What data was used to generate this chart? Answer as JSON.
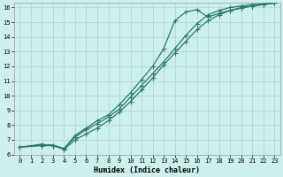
{
  "xlabel": "Humidex (Indice chaleur)",
  "xlim": [
    -0.5,
    23.5
  ],
  "ylim": [
    6,
    16.3
  ],
  "xticks": [
    0,
    1,
    2,
    3,
    4,
    5,
    6,
    7,
    8,
    9,
    10,
    11,
    12,
    13,
    14,
    15,
    16,
    17,
    18,
    19,
    20,
    21,
    22,
    23
  ],
  "yticks": [
    6,
    7,
    8,
    9,
    10,
    11,
    12,
    13,
    14,
    15,
    16
  ],
  "bg_color": "#cdf0ec",
  "grid_color": "#b0d8d4",
  "line_color": "#2a7a6a",
  "line1_x": [
    0,
    2,
    3,
    4,
    5,
    6,
    7,
    8,
    9,
    10,
    11,
    12,
    13,
    14,
    15,
    16,
    17,
    18,
    19,
    20,
    21,
    22,
    23
  ],
  "line1_y": [
    6.5,
    6.7,
    6.6,
    6.4,
    7.3,
    7.8,
    8.3,
    8.7,
    9.4,
    10.2,
    11.1,
    12.0,
    13.2,
    15.1,
    15.7,
    15.85,
    15.35,
    15.6,
    15.8,
    15.95,
    16.1,
    16.2,
    16.3
  ],
  "line2_x": [
    0,
    2,
    3,
    4,
    5,
    6,
    7,
    8,
    9,
    10,
    11,
    12,
    13,
    14,
    15,
    16,
    17,
    18,
    19,
    20,
    21,
    22,
    23
  ],
  "line2_y": [
    6.5,
    6.65,
    6.65,
    6.4,
    7.2,
    7.7,
    8.1,
    8.55,
    9.1,
    9.9,
    10.7,
    11.5,
    12.3,
    13.2,
    14.1,
    14.9,
    15.5,
    15.8,
    16.0,
    16.1,
    16.2,
    16.25,
    16.3
  ],
  "line3_x": [
    0,
    2,
    3,
    4,
    5,
    6,
    7,
    8,
    9,
    10,
    11,
    12,
    13,
    14,
    15,
    16,
    17,
    18,
    19,
    20,
    21,
    22,
    23
  ],
  "line3_y": [
    6.5,
    6.6,
    6.6,
    6.35,
    7.0,
    7.4,
    7.8,
    8.3,
    8.9,
    9.6,
    10.4,
    11.2,
    12.1,
    12.9,
    13.7,
    14.5,
    15.1,
    15.5,
    15.8,
    16.0,
    16.1,
    16.2,
    16.3
  ]
}
